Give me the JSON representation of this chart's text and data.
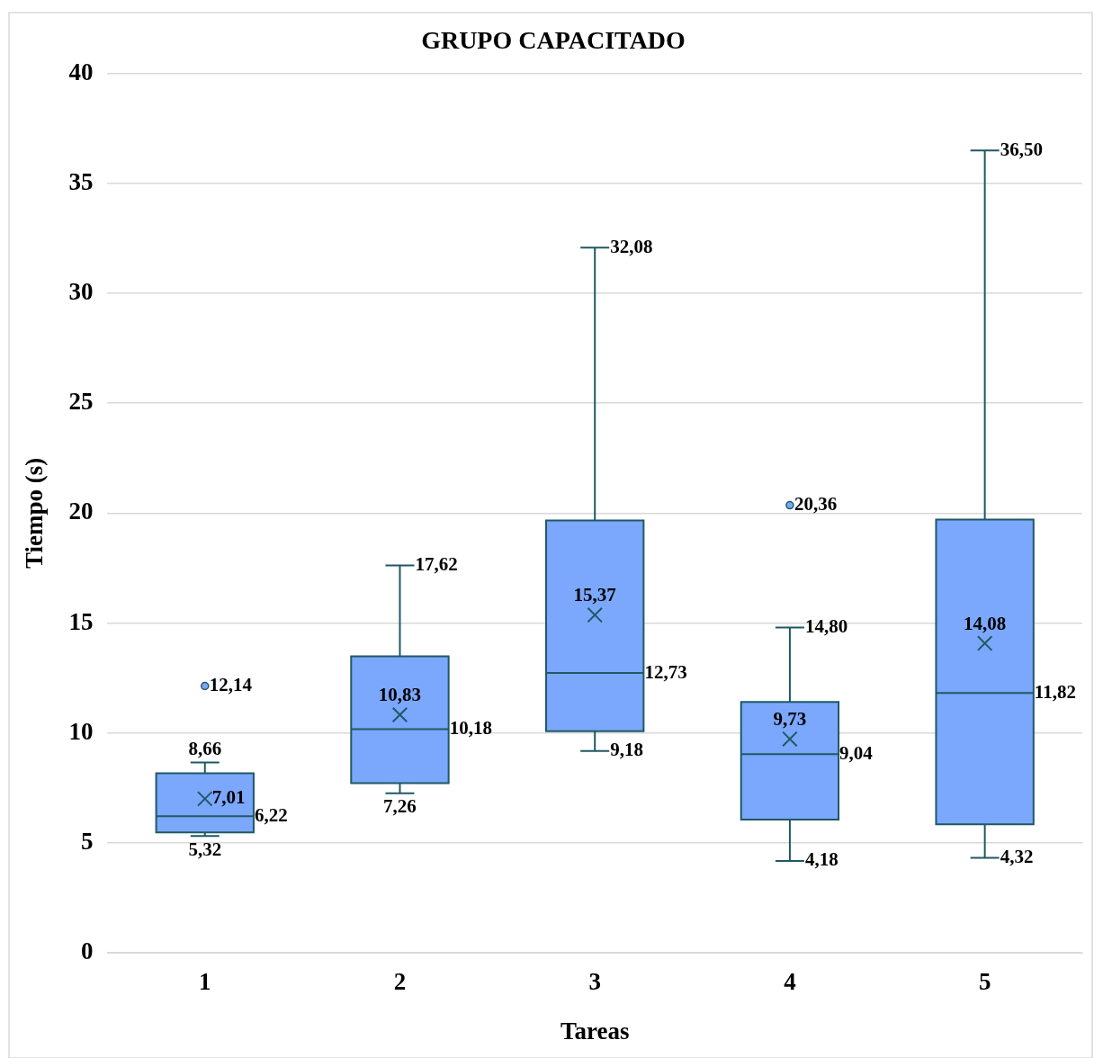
{
  "chart_data": {
    "type": "box",
    "title": "GRUPO CAPACITADO",
    "xlabel": "Tareas",
    "ylabel": "Tiempo (s)",
    "categories": [
      "1",
      "2",
      "3",
      "4",
      "5"
    ],
    "color": "#7ba7fd",
    "ylim": [
      0,
      40
    ],
    "yticks": [
      0,
      5,
      10,
      15,
      20,
      25,
      30,
      35,
      40
    ],
    "grid": "y",
    "boxes": [
      {
        "low": 5.32,
        "q1": 5.48,
        "median": 6.22,
        "q3": 8.17,
        "high": 8.66
      },
      {
        "low": 7.26,
        "q1": 7.72,
        "median": 10.18,
        "q3": 13.49,
        "high": 17.62
      },
      {
        "low": 9.18,
        "q1": 10.08,
        "median": 12.73,
        "q3": 19.67,
        "high": 32.08
      },
      {
        "low": 4.18,
        "q1": 6.06,
        "median": 9.04,
        "q3": 11.41,
        "high": 14.8
      },
      {
        "low": 4.32,
        "q1": 5.85,
        "median": 11.82,
        "q3": 19.71,
        "high": 36.5
      }
    ],
    "series": [
      {
        "type": "scatter",
        "marker": "cross",
        "color": "#1f5963",
        "x": [
          "1",
          "2",
          "3",
          "4",
          "5"
        ],
        "values": [
          7.01,
          10.83,
          15.37,
          9.73,
          14.08
        ]
      },
      {
        "type": "scatter",
        "marker": "circle",
        "color": "#7ba7fd",
        "x": [
          "1",
          "4"
        ],
        "values": [
          12.14,
          20.36
        ]
      }
    ],
    "annotations": [
      {
        "text": "8,66",
        "x": "1",
        "y": 8.66
      },
      {
        "text": "7,01",
        "x": "1",
        "y": 7.01
      },
      {
        "text": "6,22",
        "x": "1",
        "y": 6.22
      },
      {
        "text": "5,32",
        "x": "1",
        "y": 5.32
      },
      {
        "text": "12,14",
        "x": "1",
        "y": 12.14
      },
      {
        "text": "17,62",
        "x": "2",
        "y": 17.62
      },
      {
        "text": "10,83",
        "x": "2",
        "y": 10.83
      },
      {
        "text": "10,18",
        "x": "2",
        "y": 10.18
      },
      {
        "text": "7,26",
        "x": "2",
        "y": 7.26
      },
      {
        "text": "32,08",
        "x": "3",
        "y": 32.08
      },
      {
        "text": "15,37",
        "x": "3",
        "y": 15.37
      },
      {
        "text": "12,73",
        "x": "3",
        "y": 12.73
      },
      {
        "text": "9,18",
        "x": "3",
        "y": 9.18
      },
      {
        "text": "20,36",
        "x": "4",
        "y": 20.36
      },
      {
        "text": "14,80",
        "x": "4",
        "y": 14.8
      },
      {
        "text": "9,73",
        "x": "4",
        "y": 9.73
      },
      {
        "text": "9,04",
        "x": "4",
        "y": 9.04
      },
      {
        "text": "4,18",
        "x": "4",
        "y": 4.18
      },
      {
        "text": "36,50",
        "x": "5",
        "y": 36.5
      },
      {
        "text": "14,08",
        "x": "5",
        "y": 14.08
      },
      {
        "text": "11,82",
        "x": "5",
        "y": 11.82
      },
      {
        "text": "4,32",
        "x": "5",
        "y": 4.32
      }
    ]
  }
}
